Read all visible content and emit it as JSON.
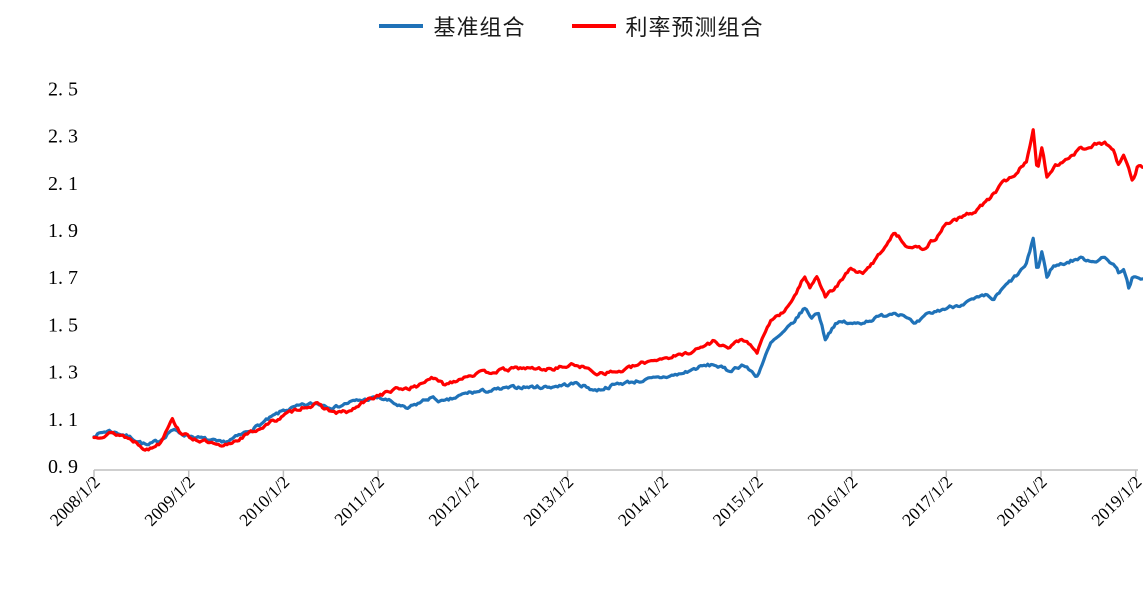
{
  "page": {
    "background": "#ffffff"
  },
  "legend": {
    "items": [
      {
        "label": "基准组合",
        "color": "#1F72B8"
      },
      {
        "label": "利率预测组合",
        "color": "#FF0000"
      }
    ]
  },
  "axis": {
    "line_color": "#BFBFBF",
    "label_color": "#000000"
  },
  "chart_data": {
    "type": "line",
    "title": "",
    "xlabel": "",
    "ylabel": "",
    "grid": false,
    "legend_position": "top-center",
    "ylim": [
      0.9,
      2.5
    ],
    "y_ticks": [
      0.9,
      1.1,
      1.3,
      1.5,
      1.7,
      1.9,
      2.1,
      2.3,
      2.5
    ],
    "y_tick_labels": [
      "0. 9",
      "1. 1",
      "1. 3",
      "1. 5",
      "1. 7",
      "1. 9",
      "2. 1",
      "2. 3",
      "2. 5"
    ],
    "x_unit": "decimal_year",
    "x_range_years": [
      2008.0,
      2019.08
    ],
    "x_tick_years": [
      2008,
      2009,
      2010,
      2011,
      2012,
      2013,
      2014,
      2015,
      2016,
      2017,
      2018,
      2019
    ],
    "x_tick_labels": [
      "2008/1/2",
      "2009/1/2",
      "2010/1/2",
      "2011/1/2",
      "2012/1/2",
      "2013/1/2",
      "2014/1/2",
      "2015/1/2",
      "2016/1/2",
      "2017/1/2",
      "2018/1/2",
      "2019/1/2"
    ],
    "series": [
      {
        "name": "基准组合",
        "color": "#1F72B8",
        "points": [
          [
            2008.0,
            1.03
          ],
          [
            2008.15,
            1.05
          ],
          [
            2008.3,
            1.035
          ],
          [
            2008.45,
            1.01
          ],
          [
            2008.57,
            0.985
          ],
          [
            2008.7,
            1.01
          ],
          [
            2008.82,
            1.055
          ],
          [
            2008.9,
            1.04
          ],
          [
            2009.0,
            1.03
          ],
          [
            2009.2,
            1.01
          ],
          [
            2009.35,
            0.995
          ],
          [
            2009.55,
            1.03
          ],
          [
            2009.75,
            1.075
          ],
          [
            2010.0,
            1.135
          ],
          [
            2010.2,
            1.155
          ],
          [
            2010.35,
            1.165
          ],
          [
            2010.55,
            1.15
          ],
          [
            2010.7,
            1.17
          ],
          [
            2010.85,
            1.18
          ],
          [
            2011.0,
            1.19
          ],
          [
            2011.12,
            1.175
          ],
          [
            2011.3,
            1.14
          ],
          [
            2011.45,
            1.17
          ],
          [
            2011.55,
            1.19
          ],
          [
            2011.7,
            1.17
          ],
          [
            2011.95,
            1.21
          ],
          [
            2012.2,
            1.22
          ],
          [
            2012.5,
            1.235
          ],
          [
            2012.8,
            1.235
          ],
          [
            2013.1,
            1.25
          ],
          [
            2013.3,
            1.22
          ],
          [
            2013.55,
            1.25
          ],
          [
            2013.9,
            1.268
          ],
          [
            2014.2,
            1.29
          ],
          [
            2014.4,
            1.32
          ],
          [
            2014.55,
            1.33
          ],
          [
            2014.7,
            1.302
          ],
          [
            2014.85,
            1.33
          ],
          [
            2015.0,
            1.28
          ],
          [
            2015.15,
            1.42
          ],
          [
            2015.3,
            1.47
          ],
          [
            2015.42,
            1.525
          ],
          [
            2015.5,
            1.57
          ],
          [
            2015.58,
            1.53
          ],
          [
            2015.65,
            1.552
          ],
          [
            2015.72,
            1.44
          ],
          [
            2015.82,
            1.5
          ],
          [
            2015.92,
            1.51
          ],
          [
            2016.0,
            1.5
          ],
          [
            2016.12,
            1.51
          ],
          [
            2016.28,
            1.53
          ],
          [
            2016.45,
            1.552
          ],
          [
            2016.57,
            1.54
          ],
          [
            2016.67,
            1.495
          ],
          [
            2016.8,
            1.54
          ],
          [
            2016.93,
            1.56
          ],
          [
            2017.1,
            1.58
          ],
          [
            2017.3,
            1.605
          ],
          [
            2017.42,
            1.62
          ],
          [
            2017.5,
            1.605
          ],
          [
            2017.62,
            1.66
          ],
          [
            2017.75,
            1.71
          ],
          [
            2017.85,
            1.755
          ],
          [
            2017.92,
            1.87
          ],
          [
            2017.96,
            1.72
          ],
          [
            2018.01,
            1.81
          ],
          [
            2018.06,
            1.7
          ],
          [
            2018.12,
            1.745
          ],
          [
            2018.25,
            1.76
          ],
          [
            2018.4,
            1.78
          ],
          [
            2018.55,
            1.77
          ],
          [
            2018.67,
            1.78
          ],
          [
            2018.76,
            1.76
          ],
          [
            2018.82,
            1.72
          ],
          [
            2018.87,
            1.74
          ],
          [
            2018.93,
            1.65
          ],
          [
            2018.97,
            1.7
          ],
          [
            2019.02,
            1.69
          ],
          [
            2019.08,
            1.7
          ]
        ]
      },
      {
        "name": "利率预测组合",
        "color": "#FF0000",
        "points": [
          [
            2008.0,
            1.02
          ],
          [
            2008.15,
            1.04
          ],
          [
            2008.3,
            1.03
          ],
          [
            2008.45,
            1.0
          ],
          [
            2008.57,
            0.968
          ],
          [
            2008.7,
            1.0
          ],
          [
            2008.82,
            1.105
          ],
          [
            2008.9,
            1.05
          ],
          [
            2009.0,
            1.022
          ],
          [
            2009.2,
            1.0
          ],
          [
            2009.35,
            0.978
          ],
          [
            2009.55,
            1.02
          ],
          [
            2009.75,
            1.06
          ],
          [
            2010.0,
            1.112
          ],
          [
            2010.2,
            1.15
          ],
          [
            2010.35,
            1.16
          ],
          [
            2010.55,
            1.125
          ],
          [
            2010.7,
            1.13
          ],
          [
            2010.85,
            1.17
          ],
          [
            2011.0,
            1.2
          ],
          [
            2011.2,
            1.225
          ],
          [
            2011.4,
            1.235
          ],
          [
            2011.55,
            1.275
          ],
          [
            2011.7,
            1.245
          ],
          [
            2011.95,
            1.285
          ],
          [
            2012.2,
            1.3
          ],
          [
            2012.5,
            1.315
          ],
          [
            2012.8,
            1.31
          ],
          [
            2013.1,
            1.33
          ],
          [
            2013.3,
            1.295
          ],
          [
            2013.55,
            1.3
          ],
          [
            2013.9,
            1.35
          ],
          [
            2014.2,
            1.37
          ],
          [
            2014.4,
            1.4
          ],
          [
            2014.55,
            1.43
          ],
          [
            2014.7,
            1.4
          ],
          [
            2014.85,
            1.44
          ],
          [
            2015.0,
            1.38
          ],
          [
            2015.15,
            1.52
          ],
          [
            2015.3,
            1.555
          ],
          [
            2015.42,
            1.64
          ],
          [
            2015.5,
            1.7
          ],
          [
            2015.56,
            1.66
          ],
          [
            2015.63,
            1.71
          ],
          [
            2015.72,
            1.62
          ],
          [
            2015.82,
            1.65
          ],
          [
            2015.92,
            1.7
          ],
          [
            2016.0,
            1.74
          ],
          [
            2016.12,
            1.71
          ],
          [
            2016.28,
            1.79
          ],
          [
            2016.45,
            1.89
          ],
          [
            2016.6,
            1.83
          ],
          [
            2016.75,
            1.82
          ],
          [
            2016.9,
            1.87
          ],
          [
            2017.0,
            1.93
          ],
          [
            2017.15,
            1.95
          ],
          [
            2017.3,
            1.98
          ],
          [
            2017.45,
            2.03
          ],
          [
            2017.6,
            2.1
          ],
          [
            2017.75,
            2.145
          ],
          [
            2017.85,
            2.195
          ],
          [
            2017.92,
            2.33
          ],
          [
            2017.96,
            2.15
          ],
          [
            2018.01,
            2.25
          ],
          [
            2018.06,
            2.12
          ],
          [
            2018.15,
            2.17
          ],
          [
            2018.25,
            2.2
          ],
          [
            2018.4,
            2.24
          ],
          [
            2018.55,
            2.26
          ],
          [
            2018.67,
            2.27
          ],
          [
            2018.76,
            2.24
          ],
          [
            2018.82,
            2.17
          ],
          [
            2018.87,
            2.22
          ],
          [
            2018.93,
            2.15
          ],
          [
            2018.97,
            2.1
          ],
          [
            2019.02,
            2.17
          ],
          [
            2019.08,
            2.17
          ]
        ]
      }
    ]
  }
}
